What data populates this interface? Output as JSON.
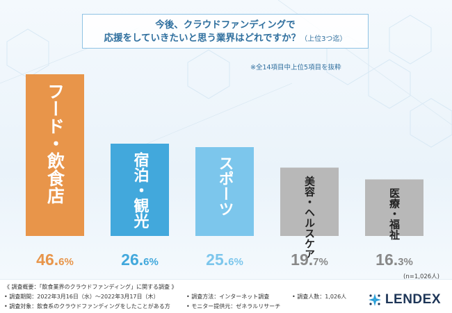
{
  "question": {
    "line1": "今後、クラウドファンディングで",
    "line2": "応援をしていきたいと思う業界はどれですか？",
    "suffix": "（上位3つ迄）"
  },
  "note": "※全14項目中上位5項目を抜粋",
  "chart_data": {
    "type": "bar",
    "title": "今後、クラウドファンディングで応援をしていきたいと思う業界はどれですか？（上位3つ迄）",
    "categories": [
      "フード・飲食店",
      "宿泊・観光",
      "スポーツ",
      "美容・ヘルスケア",
      "医療・福祉"
    ],
    "values": [
      46.6,
      26.6,
      25.6,
      19.7,
      16.3
    ],
    "value_labels_int": [
      "46.",
      "26.",
      "25.",
      "19.",
      "16."
    ],
    "value_labels_dec": [
      "6%",
      "6%",
      "6%",
      "7%",
      "3%"
    ],
    "unit": "%",
    "ylim": [
      0,
      50
    ],
    "colors": [
      "#e8954a",
      "#42a8dc",
      "#7cc6ec",
      "#b8b8b8",
      "#b8b8b8"
    ],
    "label_colors": [
      "#ffffff",
      "#ffffff",
      "#ffffff",
      "#222222",
      "#222222"
    ],
    "value_colors": [
      "#e8954a",
      "#42a8dc",
      "#7cc6ec",
      "#888888",
      "#888888"
    ],
    "sample_size": "(n=1,026人)"
  },
  "footer": {
    "overview": "《 調査概要：「飲食業界のクラウドファンディング」に関する調査 》",
    "period": "• 調査期間：2022年3月16日（水）〜2022年3月17日（木）",
    "method": "• 調査方法：インターネット調査",
    "count": "• 調査人数：1,026人",
    "target": "• 調査対象：飲食系のクラウドファンディングをしたことがある方",
    "provider": "• モニター提供元：ゼネラルリサーチ"
  },
  "logo": {
    "text": "LENDEX",
    "icon": "lendex-star-icon"
  }
}
